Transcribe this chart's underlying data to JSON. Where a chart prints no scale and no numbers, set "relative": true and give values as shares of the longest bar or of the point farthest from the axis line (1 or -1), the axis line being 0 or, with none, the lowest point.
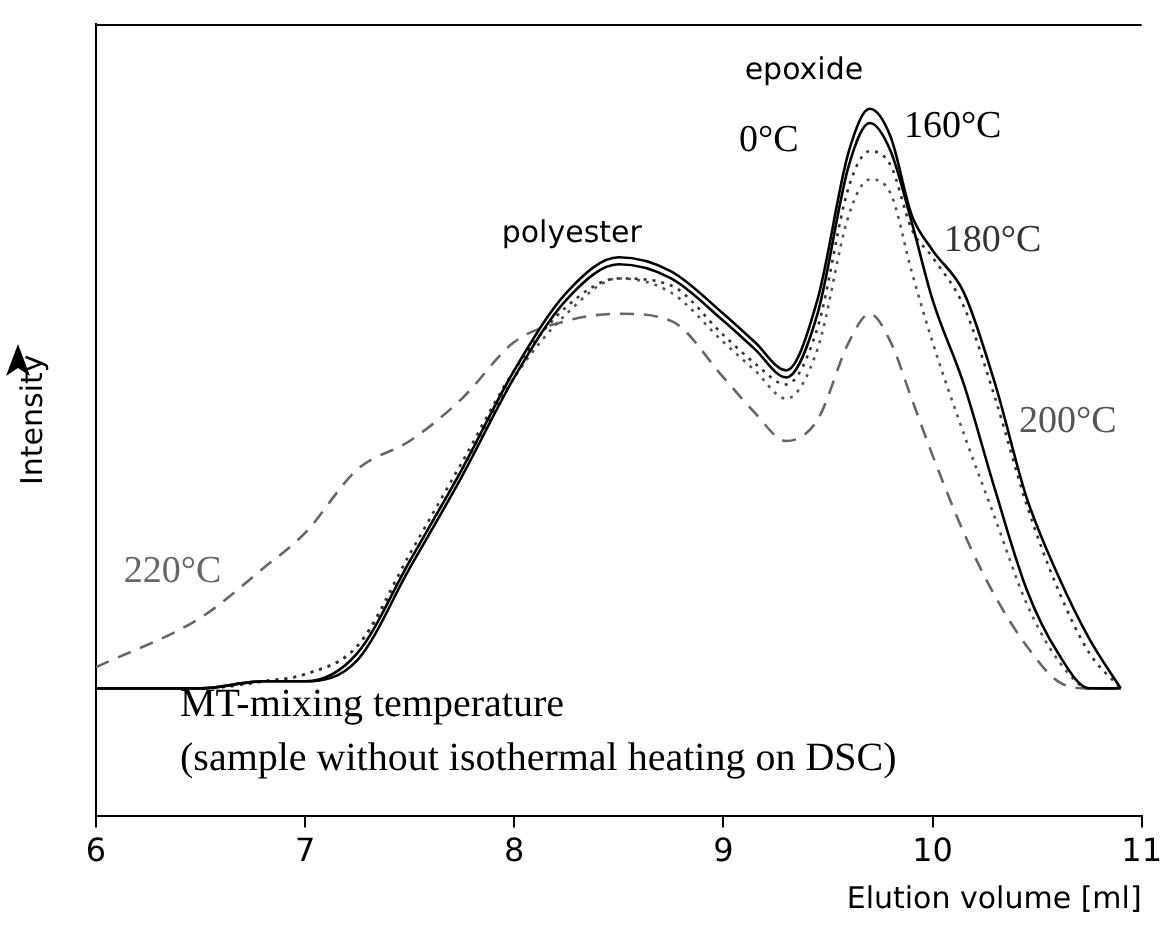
{
  "chart_data": {
    "type": "line",
    "relative": true,
    "xlabel": "Elution volume [ml]",
    "ylabel": "Intensity",
    "x": [
      6,
      6.5,
      6.8,
      7,
      7.25,
      7.5,
      7.75,
      8,
      8.25,
      8.5,
      8.75,
      9,
      9.15,
      9.3,
      9.45,
      9.6,
      9.7,
      9.8,
      9.9,
      10,
      10.15,
      10.3,
      10.45,
      10.6,
      10.75,
      10.9
    ],
    "xlim": [
      6,
      11
    ],
    "xticks": [
      6,
      7,
      8,
      9,
      10,
      11
    ],
    "tick_labels": "x",
    "grid": false,
    "legend": false,
    "marker": "none",
    "series": [
      {
        "name": "0°C",
        "color": "#000000",
        "line_style": "solid",
        "values": [
          0.18,
          0.18,
          0.19,
          0.19,
          0.23,
          0.36,
          0.49,
          0.63,
          0.74,
          0.79,
          0.77,
          0.71,
          0.67,
          0.63,
          0.73,
          0.94,
          1,
          0.96,
          0.85,
          0.8,
          0.74,
          0.61,
          0.45,
          0.34,
          0.25,
          0.18
        ]
      },
      {
        "name": "160°C",
        "color": "#000000",
        "line_style": "solid",
        "values": [
          0.18,
          0.18,
          0.19,
          0.19,
          0.22,
          0.35,
          0.48,
          0.62,
          0.73,
          0.78,
          0.76,
          0.7,
          0.66,
          0.62,
          0.71,
          0.92,
          0.98,
          0.94,
          0.84,
          0.73,
          0.61,
          0.46,
          0.32,
          0.23,
          0.18,
          0.18
        ]
      },
      {
        "name": "180°C",
        "color": "#333333",
        "line_style": "dotted",
        "values": [
          0.18,
          0.18,
          0.19,
          0.2,
          0.24,
          0.37,
          0.5,
          0.63,
          0.72,
          0.76,
          0.75,
          0.68,
          0.64,
          0.61,
          0.69,
          0.89,
          0.94,
          0.92,
          0.83,
          0.79,
          0.72,
          0.59,
          0.44,
          0.32,
          0.23,
          0.18
        ]
      },
      {
        "name": "200°C",
        "color": "#555555",
        "line_style": "dotted",
        "values": [
          0.18,
          0.18,
          0.19,
          0.2,
          0.24,
          0.36,
          0.49,
          0.62,
          0.71,
          0.76,
          0.74,
          0.67,
          0.63,
          0.59,
          0.66,
          0.85,
          0.9,
          0.88,
          0.77,
          0.67,
          0.54,
          0.42,
          0.3,
          0.22,
          0.18,
          0.18
        ]
      },
      {
        "name": "220°C",
        "color": "#666666",
        "line_style": "dashed",
        "values": [
          0.21,
          0.28,
          0.35,
          0.4,
          0.49,
          0.53,
          0.59,
          0.67,
          0.7,
          0.71,
          0.7,
          0.62,
          0.57,
          0.53,
          0.56,
          0.67,
          0.71,
          0.67,
          0.59,
          0.51,
          0.4,
          0.31,
          0.24,
          0.19,
          0.18,
          0.18
        ]
      }
    ],
    "annotations": [
      "polyester",
      "epoxide",
      "MT-mixing temperature",
      "(sample without isothermal heating on DSC)"
    ]
  }
}
